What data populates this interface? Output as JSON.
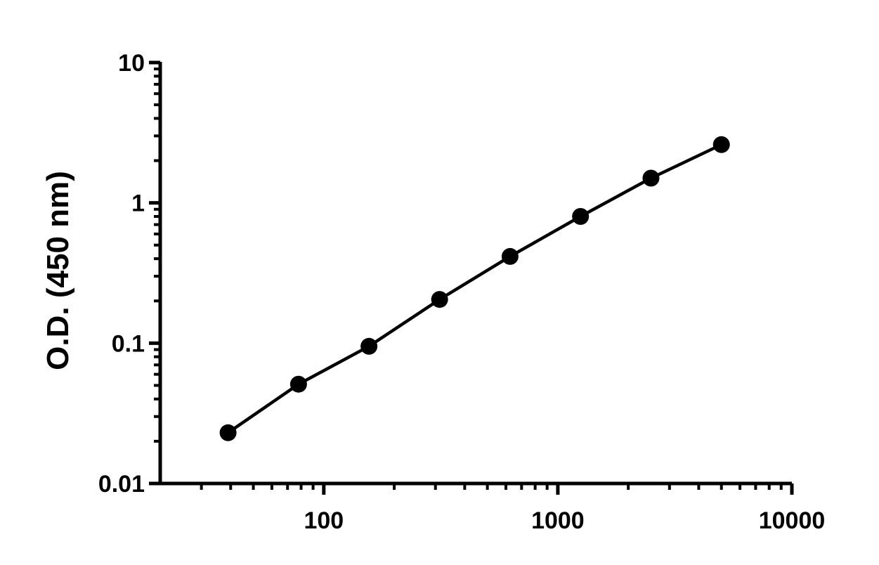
{
  "chart_data": {
    "type": "scatter",
    "title": "",
    "xlabel": "",
    "ylabel": "O.D. (450 nm)",
    "x_scale": "log",
    "y_scale": "log",
    "xlim": [
      20,
      10000
    ],
    "ylim": [
      0.01,
      10
    ],
    "x_major_ticks": [
      100,
      1000,
      10000
    ],
    "x_tick_labels": [
      "100",
      "1000",
      "10000"
    ],
    "y_major_ticks": [
      0.01,
      0.1,
      1,
      10
    ],
    "y_tick_labels": [
      "0.01",
      "0.1",
      "1",
      "10"
    ],
    "grid": false,
    "legend": "none",
    "series": [
      {
        "x": [
          39,
          78,
          156,
          312.5,
          625,
          1250,
          2500,
          5000
        ],
        "y": [
          0.023,
          0.051,
          0.095,
          0.205,
          0.415,
          0.8,
          1.5,
          2.6
        ],
        "line": true,
        "color": "#000000"
      }
    ]
  }
}
